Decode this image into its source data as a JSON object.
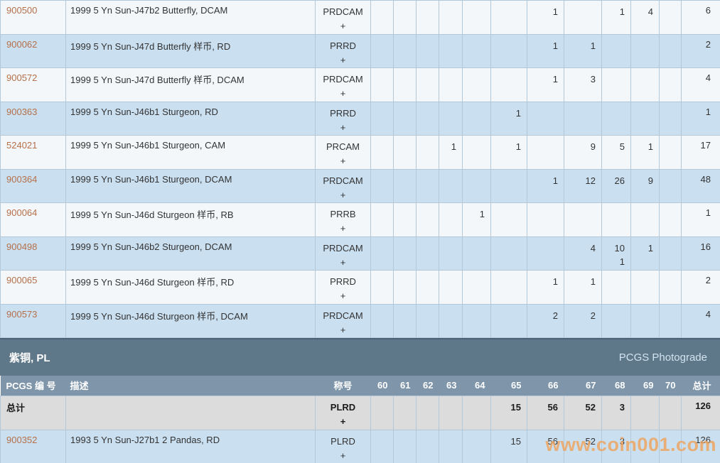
{
  "table": {
    "headers": {
      "pcgs_no": "PCGS 编 号",
      "description": "描述",
      "designation": "称号",
      "grades": [
        "60",
        "61",
        "62",
        "63",
        "64",
        "65",
        "66",
        "67",
        "68",
        "69",
        "70"
      ],
      "total": "总计"
    },
    "upper_rows": [
      {
        "pcgs_no": "900500",
        "description": "1999 5 Yn Sun-J47b2 Butterfly, DCAM",
        "designation": "PRDCAM",
        "plus": "+",
        "grades": [
          "",
          "",
          "",
          "",
          "",
          "",
          "1",
          "",
          "1",
          "4",
          ""
        ],
        "total": "6"
      },
      {
        "pcgs_no": "900062",
        "description": "1999 5 Yn Sun-J47d Butterfly 样币, RD",
        "designation": "PRRD",
        "plus": "+",
        "grades": [
          "",
          "",
          "",
          "",
          "",
          "",
          "1",
          "1",
          "",
          "",
          ""
        ],
        "total": "2"
      },
      {
        "pcgs_no": "900572",
        "description": "1999 5 Yn Sun-J47d Butterfly 样币, DCAM",
        "designation": "PRDCAM",
        "plus": "+",
        "grades": [
          "",
          "",
          "",
          "",
          "",
          "",
          "1",
          "3",
          "",
          "",
          ""
        ],
        "total": "4"
      },
      {
        "pcgs_no": "900363",
        "description": "1999 5 Yn Sun-J46b1 Sturgeon, RD",
        "designation": "PRRD",
        "plus": "+",
        "grades": [
          "",
          "",
          "",
          "",
          "",
          "1",
          "",
          "",
          "",
          "",
          ""
        ],
        "total": "1"
      },
      {
        "pcgs_no": "524021",
        "description": "1999 5 Yn Sun-J46b1 Sturgeon, CAM",
        "designation": "PRCAM",
        "plus": "+",
        "grades": [
          "",
          "",
          "",
          "1",
          "",
          "1",
          "",
          "9",
          "5",
          "1",
          ""
        ],
        "total": "17"
      },
      {
        "pcgs_no": "900364",
        "description": "1999 5 Yn Sun-J46b1 Sturgeon, DCAM",
        "designation": "PRDCAM",
        "plus": "+",
        "grades": [
          "",
          "",
          "",
          "",
          "",
          "",
          "1",
          "12",
          "26",
          "9",
          ""
        ],
        "total": "48"
      },
      {
        "pcgs_no": "900064",
        "description": "1999 5 Yn Sun-J46d Sturgeon 样币, RB",
        "designation": "PRRB",
        "plus": "+",
        "grades": [
          "",
          "",
          "",
          "",
          "1",
          "",
          "",
          "",
          "",
          "",
          ""
        ],
        "total": "1"
      },
      {
        "pcgs_no": "900498",
        "description": "1999 5 Yn Sun-J46b2 Sturgeon, DCAM",
        "designation": "PRDCAM",
        "plus": "+",
        "grades": [
          "",
          "",
          "",
          "",
          "",
          "",
          "",
          "4",
          "10",
          "1",
          ""
        ],
        "plus_grades": [
          "",
          "",
          "",
          "",
          "",
          "",
          "",
          "",
          "1",
          "",
          ""
        ],
        "total": "16"
      },
      {
        "pcgs_no": "900065",
        "description": "1999 5 Yn Sun-J46d Sturgeon 样币, RD",
        "designation": "PRRD",
        "plus": "+",
        "grades": [
          "",
          "",
          "",
          "",
          "",
          "",
          "1",
          "1",
          "",
          "",
          ""
        ],
        "total": "2"
      },
      {
        "pcgs_no": "900573",
        "description": "1999 5 Yn Sun-J46d Sturgeon 样币, DCAM",
        "designation": "PRDCAM",
        "plus": "+",
        "grades": [
          "",
          "",
          "",
          "",
          "",
          "",
          "2",
          "2",
          "",
          "",
          ""
        ],
        "total": "4"
      }
    ],
    "section": {
      "title": "紫铜, PL",
      "right_label": "PCGS Photograde"
    },
    "lower_rows": [
      {
        "pcgs_no": "总计",
        "description": "",
        "designation": "PLRD",
        "plus": "+",
        "is_total": true,
        "grades": [
          "",
          "",
          "",
          "",
          "",
          "15",
          "56",
          "52",
          "3",
          "",
          ""
        ],
        "total": "126"
      },
      {
        "pcgs_no": "900352",
        "description": "1993 5 Yn Sun-J27b1 2 Pandas, RD",
        "designation": "PLRD",
        "plus": "+",
        "grades": [
          "",
          "",
          "",
          "",
          "",
          "15",
          "56",
          "52",
          "3",
          "",
          ""
        ],
        "total": "126"
      }
    ]
  },
  "watermark": "www.coin001.com",
  "colors": {
    "row_light": "#f3f7fa",
    "row_blue": "#cadff0",
    "row_total_gray": "#dcdcdc",
    "grid_line": "#b3c9da",
    "section_bar": "#5e7889",
    "section_bar_edge": "#4c6175",
    "header_bar": "#7e95aa",
    "header_text": "#ffffff",
    "pcgs_link": "#b5704a",
    "body_text": "#333333",
    "photograde_text": "#d2e3f1",
    "watermark": "#f0a35c",
    "bottom_edge": "#24415d"
  }
}
